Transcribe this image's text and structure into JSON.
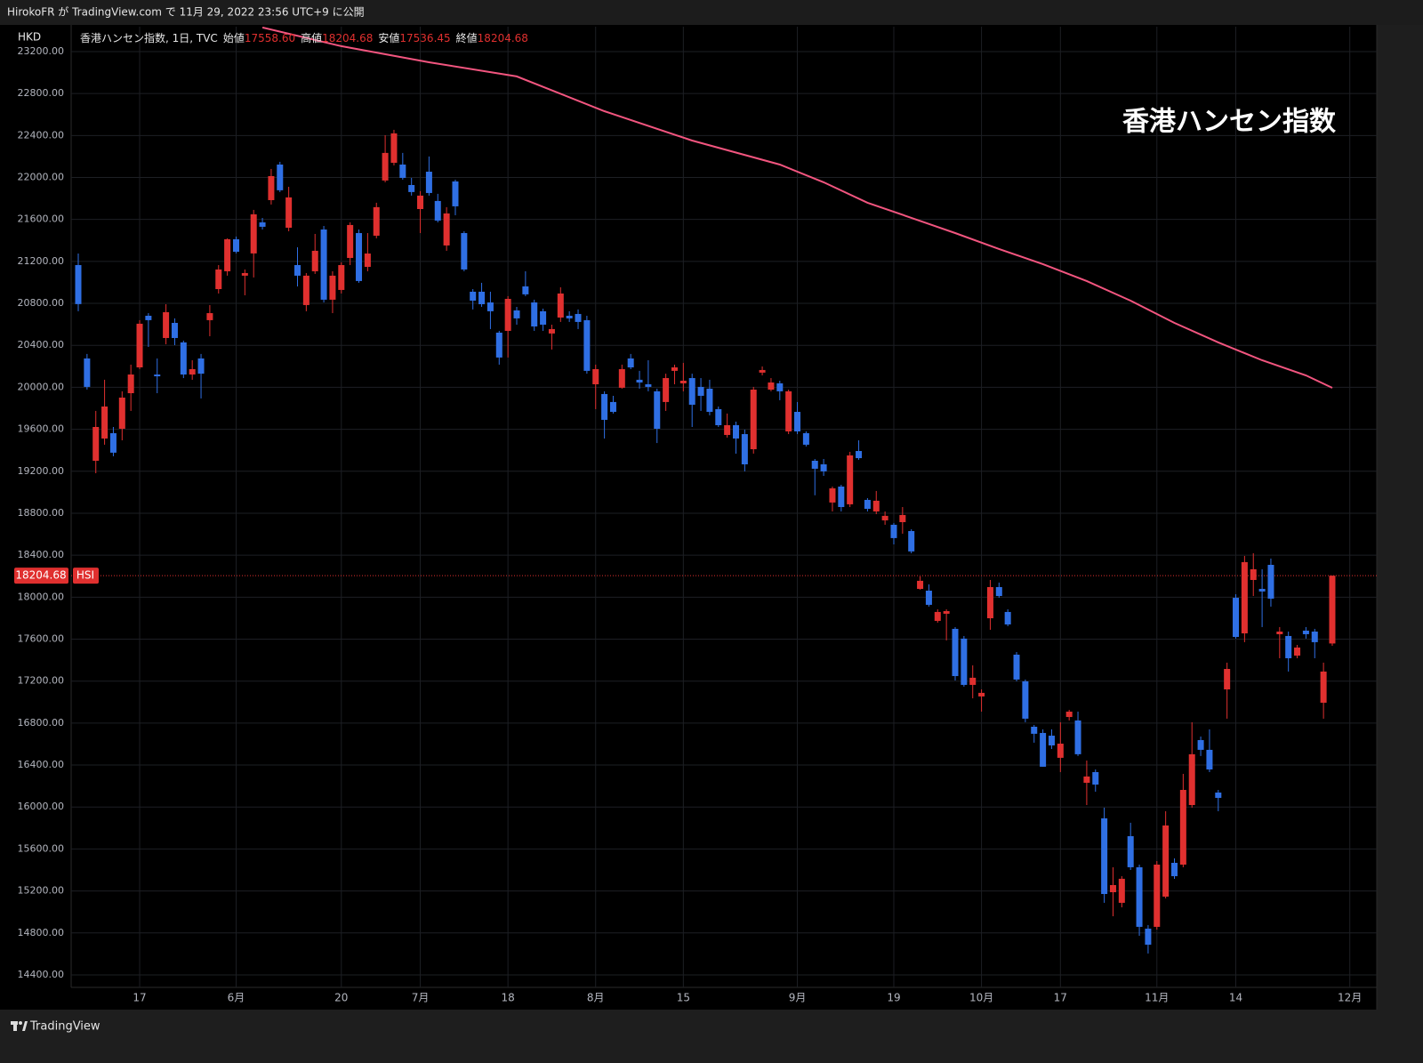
{
  "header": "HirokoFR が TradingView.com で 11月 29, 2022 23:56 UTC+9 に公開",
  "footer": "TradingView",
  "chart_data": {
    "type": "candlestick",
    "title": "香港ハンセン指数",
    "symbol": "香港ハンセン指数, 1日, TVC",
    "y_label": "HKD",
    "ohlc_legend": [
      {
        "name": "始値",
        "value": 17558.6,
        "label": "17558.60"
      },
      {
        "name": "高値",
        "value": 18204.68,
        "label": "18204.68"
      },
      {
        "name": "安値",
        "value": 17536.45,
        "label": "17536.45"
      },
      {
        "name": "終値",
        "value": 18204.68,
        "label": "18204.68"
      }
    ],
    "last_price": {
      "name": "HSI",
      "value": 18204.68,
      "label": "18204.68"
    },
    "up_color": "#e0302f",
    "down_color": "#2f6fe4",
    "grid": true,
    "ylim": [
      14281,
      23437
    ],
    "yticks": [
      {
        "value": 23200,
        "label": "23200.00"
      },
      {
        "value": 22800,
        "label": "22800.00"
      },
      {
        "value": 22400,
        "label": "22400.00"
      },
      {
        "value": 22000,
        "label": "22000.00"
      },
      {
        "value": 21600,
        "label": "21600.00"
      },
      {
        "value": 21200,
        "label": "21200.00"
      },
      {
        "value": 20800,
        "label": "20800.00"
      },
      {
        "value": 20400,
        "label": "20400.00"
      },
      {
        "value": 20000,
        "label": "20000.00"
      },
      {
        "value": 19600,
        "label": "19600.00"
      },
      {
        "value": 19200,
        "label": "19200.00"
      },
      {
        "value": 18800,
        "label": "18800.00"
      },
      {
        "value": 18400,
        "label": "18400.00"
      },
      {
        "value": 18000,
        "label": "18000.00"
      },
      {
        "value": 17600,
        "label": "17600.00"
      },
      {
        "value": 17200,
        "label": "17200.00"
      },
      {
        "value": 16800,
        "label": "16800.00"
      },
      {
        "value": 16400,
        "label": "16400.00"
      },
      {
        "value": 16000,
        "label": "16000.00"
      },
      {
        "value": 15600,
        "label": "15600.00"
      },
      {
        "value": 15200,
        "label": "15200.00"
      },
      {
        "value": 14800,
        "label": "14800.00"
      },
      {
        "value": 14400,
        "label": "14400.00"
      }
    ],
    "categories": [
      null,
      null,
      null,
      null,
      null,
      null,
      null,
      "17",
      null,
      null,
      null,
      null,
      null,
      null,
      null,
      null,
      null,
      null,
      "6月",
      null,
      null,
      null,
      null,
      null,
      null,
      null,
      null,
      null,
      null,
      null,
      "20",
      null,
      null,
      null,
      null,
      null,
      null,
      null,
      null,
      "7月",
      null,
      null,
      null,
      null,
      null,
      null,
      null,
      null,
      null,
      "18",
      null,
      null,
      null,
      null,
      null,
      null,
      null,
      null,
      null,
      "8月",
      null,
      null,
      null,
      null,
      null,
      null,
      null,
      null,
      null,
      "15",
      null,
      null,
      null,
      null,
      null,
      null,
      null,
      null,
      null,
      null,
      null,
      null,
      "9月",
      null,
      null,
      null,
      null,
      null,
      null,
      null,
      null,
      null,
      null,
      "19",
      null,
      null,
      null,
      null,
      null,
      null,
      null,
      null,
      null,
      "10月",
      null,
      null,
      null,
      null,
      null,
      null,
      null,
      null,
      "17",
      null,
      null,
      null,
      null,
      null,
      null,
      null,
      null,
      null,
      null,
      "11月",
      null,
      null,
      null,
      null,
      null,
      null,
      null,
      null,
      "14",
      null,
      null,
      null,
      null,
      null,
      null,
      null,
      null,
      null,
      null,
      null,
      null,
      "12月"
    ],
    "open": [
      21165,
      20275,
      19300,
      19512,
      19563,
      19605,
      19944,
      20190,
      20682,
      20122,
      20470,
      20614,
      20428,
      20122,
      20275,
      20640,
      20936,
      21106,
      21411,
      21064,
      21276,
      21572,
      21784,
      22123,
      21521,
      21165,
      20784,
      21106,
      21504,
      20835,
      20928,
      21233,
      21470,
      21148,
      21445,
      21971,
      22140,
      22123,
      21928,
      21699,
      22055,
      21776,
      21352,
      21962,
      21470,
      20911,
      20911,
      20809,
      20521,
      20538,
      20733,
      20962,
      20809,
      20725,
      20513,
      20665,
      20682,
      20699,
      20640,
      20029,
      19936,
      19860,
      19996,
      20275,
      20072,
      20029,
      19962,
      19860,
      20157,
      20038,
      20088,
      20004,
      19987,
      19792,
      19546,
      19639,
      19554,
      19410,
      20140,
      19978,
      20038,
      19580,
      19766,
      19563,
      19300,
      19266,
      18902,
      19054,
      18885,
      19393,
      18927,
      18817,
      18732,
      18690,
      18715,
      18630,
      18079,
      18062,
      17774,
      17842,
      17698,
      17605,
      17164,
      17054,
      17799,
      18096,
      17859,
      17452,
      17198,
      16765,
      16706,
      16680,
      16469,
      16858,
      16825,
      16231,
      16333,
      15892,
      15188,
      15087,
      15722,
      15426,
      14841,
      14858,
      15146,
      15468,
      15451,
      16019,
      16638,
      16545,
      16138,
      17121,
      17994,
      17655,
      18164,
      18079,
      18308,
      17647,
      17630,
      17443,
      17681,
      17672,
      16994,
      17558.6,
      null,
      null
    ],
    "high": [
      21275,
      20318,
      19775,
      20072,
      19622,
      19962,
      20216,
      20640,
      20707,
      20275,
      20792,
      20657,
      20445,
      20258,
      20318,
      20784,
      21165,
      21420,
      21437,
      21123,
      21691,
      21614,
      22081,
      22149,
      21911,
      21335,
      21089,
      21462,
      21538,
      21106,
      21191,
      21572,
      21504,
      21470,
      21759,
      22403,
      22454,
      22234,
      21996,
      21870,
      22200,
      21844,
      21717,
      21979,
      21487,
      20936,
      20996,
      20911,
      20538,
      20869,
      20767,
      21106,
      20835,
      20750,
      20597,
      20953,
      20725,
      20742,
      20682,
      20216,
      19962,
      19919,
      20216,
      20318,
      20157,
      20258,
      19987,
      20130,
      20216,
      20233,
      20130,
      20088,
      20072,
      19817,
      19750,
      19673,
      19597,
      20004,
      20199,
      20088,
      20063,
      19978,
      19860,
      19580,
      19317,
      19317,
      19054,
      19071,
      19385,
      19495,
      18944,
      19012,
      18817,
      18707,
      18859,
      18647,
      18198,
      18122,
      17884,
      17884,
      17715,
      17630,
      17350,
      17121,
      18164,
      18139,
      17884,
      17477,
      17215,
      16782,
      16740,
      16740,
      16808,
      16926,
      16909,
      16443,
      16358,
      15994,
      15426,
      15341,
      15850,
      15451,
      14875,
      15485,
      15960,
      15510,
      16316,
      16808,
      16672,
      16740,
      16163,
      17376,
      18028,
      18393,
      18419,
      18266,
      18368,
      17715,
      17672,
      17545,
      17715,
      17698,
      17376,
      18204.68,
      null,
      null
    ],
    "low": [
      20725,
      19979,
      19181,
      19453,
      19343,
      19495,
      19775,
      20173,
      20385,
      19944,
      20410,
      20402,
      20088,
      20072,
      19894,
      20487,
      20894,
      21064,
      21276,
      20877,
      21047,
      21504,
      21742,
      21861,
      21487,
      20962,
      20725,
      21081,
      20809,
      20707,
      20894,
      21165,
      20996,
      21106,
      21420,
      21954,
      22115,
      21979,
      21827,
      21470,
      21827,
      21572,
      21301,
      21640,
      21106,
      20742,
      20767,
      20555,
      20216,
      20284,
      20597,
      20869,
      20538,
      20538,
      20360,
      20623,
      20623,
      20555,
      20130,
      19792,
      19512,
      19750,
      19987,
      20173,
      19987,
      19962,
      19469,
      19775,
      20029,
      19962,
      19622,
      19775,
      19733,
      19622,
      19521,
      19368,
      19199,
      19368,
      20114,
      19962,
      19877,
      19554,
      19554,
      19436,
      18971,
      19156,
      18817,
      18817,
      18859,
      19309,
      18817,
      18791,
      18690,
      18503,
      18605,
      18418,
      18071,
      17910,
      17757,
      17588,
      17206,
      17147,
      17036,
      16909,
      17689,
      17994,
      17723,
      17198,
      16808,
      16613,
      16384,
      16553,
      16333,
      16825,
      16486,
      16019,
      16146,
      15087,
      14959,
      15044,
      15400,
      14773,
      14604,
      14832,
      15129,
      15315,
      15426,
      15994,
      16486,
      16333,
      15960,
      16842,
      17605,
      17571,
      18011,
      17715,
      17910,
      17418,
      17291,
      17418,
      17605,
      17418,
      16842,
      17536.45,
      null,
      null
    ],
    "close": [
      20793,
      20004,
      19622,
      19817,
      19377,
      19902,
      20122,
      20606,
      20640,
      20105,
      20716,
      20470,
      20122,
      20173,
      20130,
      20707,
      21123,
      21411,
      21292,
      21089,
      21649,
      21530,
      22013,
      21878,
      21810,
      21064,
      21064,
      21301,
      20835,
      21064,
      21165,
      21547,
      21013,
      21275,
      21717,
      22234,
      22420,
      21996,
      21861,
      21827,
      21852,
      21589,
      21657,
      21725,
      21123,
      20826,
      20792,
      20725,
      20284,
      20843,
      20657,
      20886,
      20580,
      20597,
      20555,
      20894,
      20657,
      20623,
      20157,
      20173,
      19690,
      19766,
      20173,
      20190,
      20046,
      20004,
      19605,
      20088,
      20190,
      20063,
      19834,
      19919,
      19766,
      19639,
      19639,
      19512,
      19266,
      19978,
      20165,
      20046,
      19962,
      19962,
      19580,
      19453,
      19224,
      19199,
      19037,
      18859,
      19351,
      19325,
      18842,
      18919,
      18775,
      18563,
      18783,
      18436,
      18156,
      17927,
      17859,
      17867,
      17248,
      17164,
      17232,
      17088,
      18096,
      18011,
      17740,
      17215,
      16842,
      16698,
      16384,
      16587,
      16604,
      16909,
      16503,
      16291,
      16214,
      15171,
      15256,
      15316,
      15426,
      14858,
      14688,
      15451,
      15824,
      15341,
      16163,
      16503,
      16545,
      16358,
      16087,
      17316,
      17621,
      18334,
      18266,
      18054,
      17986,
      17672,
      17418,
      17520,
      17647,
      17571,
      17291,
      18204.68,
      null,
      null
    ],
    "ma": {
      "color": "#f2557f",
      "x": [
        21,
        30,
        40,
        50,
        60,
        70,
        80,
        85,
        90,
        95,
        100,
        105,
        110,
        115,
        120,
        125,
        130,
        135,
        140,
        143
      ],
      "values": [
        23429,
        23251,
        23098,
        22963,
        22632,
        22352,
        22123,
        21954,
        21759,
        21615,
        21470,
        21318,
        21174,
        21013,
        20826,
        20614,
        20428,
        20258,
        20114,
        19995
      ]
    }
  }
}
